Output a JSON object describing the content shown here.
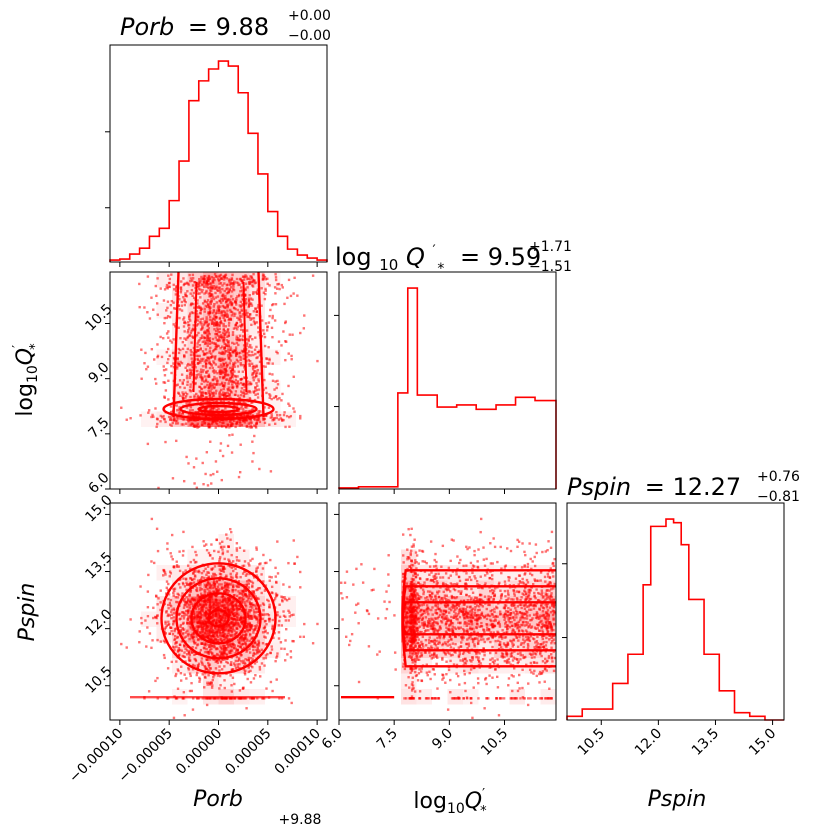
{
  "colors": {
    "accent": "#ff0000",
    "axis": "#000000"
  },
  "titles": {
    "porb": {
      "name": "Porb",
      "value": "= 9.88",
      "sup": "+0.00",
      "sub": "−0.00"
    },
    "logq": {
      "pre": "log",
      "base": "10",
      "q": "Q",
      "prime": "′",
      "star": "*",
      "value": "= 9.59",
      "sup": "+1.71",
      "sub": "−1.51"
    },
    "pspin": {
      "name": "Pspin",
      "value": "= 12.27",
      "sup": "+0.76",
      "sub": "−0.81"
    }
  },
  "axis_labels": {
    "x_porb": "Porb",
    "x_porb_offset": "+9.88",
    "x_logq_pre": "log",
    "x_logq_base": "10",
    "x_logq_q": "Q",
    "x_logq_prime": "′",
    "x_logq_star": "*",
    "x_pspin": "Pspin",
    "y_logq_pre": "log",
    "y_logq_base": "10",
    "y_logq_q": "Q",
    "y_logq_prime": "′",
    "y_logq_star": "*",
    "y_pspin": "Pspin"
  },
  "ticks": {
    "porb": [
      "−0.00010",
      "−0.00005",
      "0.00000",
      "0.00005",
      "0.00010"
    ],
    "logq_y": [
      "6.0",
      "7.5",
      "9.0",
      "10.5"
    ],
    "logq_x": [
      "6.0",
      "7.5",
      "9.0",
      "10.5"
    ],
    "pspin_y": [
      "10.5",
      "12.0",
      "13.5",
      "15.0"
    ],
    "pspin_x": [
      "10.5",
      "12.0",
      "13.5",
      "15.0"
    ]
  },
  "chart_data": {
    "type": "corner",
    "parameters": [
      "Porb",
      "log10Q'*",
      "Pspin"
    ],
    "ranges": {
      "Porb": [
        -0.00011,
        0.00011
      ],
      "logQ": [
        6.0,
        11.9
      ],
      "Pspin": [
        9.6,
        15.3
      ]
    },
    "summaries": [
      {
        "param": "Porb",
        "median": 9.88,
        "plus": 0.0,
        "minus": 0.0
      },
      {
        "param": "log10Q'*",
        "median": 9.59,
        "plus": 1.71,
        "minus": 1.51
      },
      {
        "param": "Pspin",
        "median": 12.27,
        "plus": 0.76,
        "minus": 0.81
      }
    ],
    "hist_porb": {
      "edges": [
        -0.00011,
        -0.0001,
        -9e-05,
        -8e-05,
        -7e-05,
        -6e-05,
        -5e-05,
        -4e-05,
        -3e-05,
        -2e-05,
        -1e-05,
        0.0,
        1e-05,
        2e-05,
        3e-05,
        4e-05,
        5e-05,
        6e-05,
        7e-05,
        8e-05,
        9e-05,
        0.0001,
        0.00011
      ],
      "counts": [
        2,
        3,
        8,
        14,
        26,
        34,
        62,
        102,
        163,
        183,
        195,
        203,
        198,
        171,
        130,
        89,
        51,
        26,
        13,
        7,
        4,
        2
      ]
    },
    "hist_logq": {
      "edges": [
        6.0,
        6.53,
        7.07,
        7.6,
        7.87,
        8.13,
        8.67,
        9.2,
        9.73,
        10.27,
        10.8,
        11.33,
        11.9
      ],
      "counts": [
        1,
        2,
        2,
        88,
        184,
        86,
        75,
        77,
        73,
        77,
        84,
        81
      ]
    },
    "hist_pspin": {
      "edges": [
        9.6,
        10.0,
        10.4,
        10.8,
        11.2,
        11.6,
        11.8,
        12.0,
        12.2,
        12.4,
        12.6,
        12.8,
        13.2,
        13.6,
        14.0,
        14.4,
        14.8,
        15.3
      ],
      "counts": [
        1,
        3,
        3,
        10,
        18,
        37,
        53,
        53,
        55,
        54,
        48,
        33,
        18,
        8,
        2,
        1,
        0
      ]
    },
    "floor": {
      "Pspin": 10.2,
      "logQ_upto": 7.5
    }
  }
}
